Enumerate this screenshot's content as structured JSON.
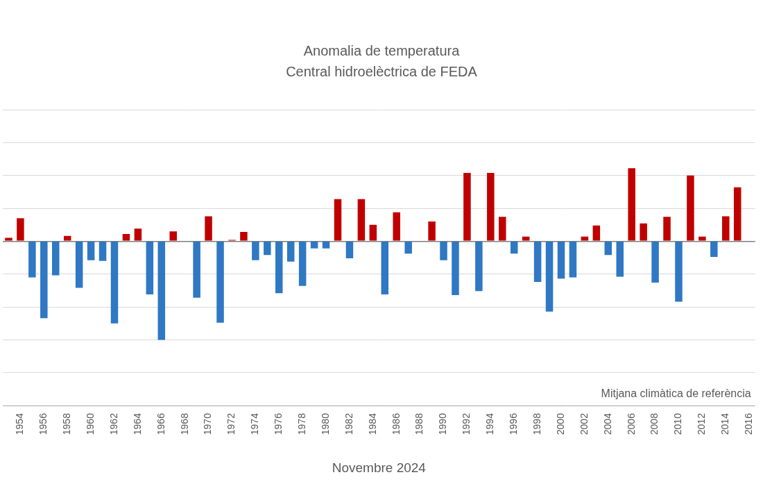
{
  "chart_data": {
    "type": "bar",
    "title": "Anomalia de temperatura",
    "subtitle": "Central hidroelèctrica de FEDA",
    "x_label": "Novembre 2024",
    "annotation": "Mitjana climàtica de referència",
    "categories": [
      null,
      "1954",
      null,
      "1956",
      null,
      "1958",
      null,
      "1960",
      null,
      "1962",
      null,
      "1964",
      null,
      "1966",
      null,
      "1968",
      null,
      "1970",
      null,
      "1972",
      null,
      "1974",
      null,
      "1976",
      null,
      "1978",
      null,
      "1980",
      null,
      "1982",
      null,
      "1984",
      null,
      "1986",
      null,
      "1988",
      null,
      "1990",
      null,
      "1992",
      null,
      "1994",
      null,
      "1996",
      null,
      "1998",
      null,
      "2000",
      null,
      "2002",
      null,
      "2004",
      null,
      "2006",
      null,
      "2008",
      null,
      "2010",
      null,
      "2012",
      null,
      "2014",
      null,
      "2016"
    ],
    "values": [
      0.05,
      0.35,
      -0.55,
      -1.17,
      -0.52,
      0.08,
      -0.71,
      -0.29,
      -0.3,
      -1.25,
      0.11,
      0.19,
      -0.81,
      -1.5,
      0.15,
      0,
      -0.86,
      0.38,
      -1.24,
      0.02,
      0.14,
      -0.29,
      -0.21,
      -0.79,
      -0.31,
      -0.68,
      -0.11,
      -0.11,
      0.64,
      -0.26,
      0.64,
      0.25,
      -0.81,
      0.44,
      -0.19,
      0,
      0.3,
      -0.29,
      -0.82,
      1.04,
      -0.76,
      1.04,
      0.37,
      -0.19,
      0.07,
      -0.62,
      -1.07,
      -0.57,
      -0.55,
      0.07,
      0.24,
      -0.21,
      -0.54,
      1.11,
      0.27,
      -0.63,
      0.37,
      -0.92,
      1.0,
      0.07,
      -0.24,
      0.38,
      0.82,
      null
    ],
    "colors": [
      "#c00000",
      "#c00000",
      "#2f78c4",
      "#2f78c4",
      "#2f78c4",
      "#c00000",
      "#2f78c4",
      "#2f78c4",
      "#2f78c4",
      "#2f78c4",
      "#c00000",
      "#c00000",
      "#2f78c4",
      "#2f78c4",
      "#c00000",
      "#2f78c4",
      "#2f78c4",
      "#c00000",
      "#2f78c4",
      "#c00000",
      "#c00000",
      "#2f78c4",
      "#2f78c4",
      "#2f78c4",
      "#2f78c4",
      "#2f78c4",
      "#2f78c4",
      "#2f78c4",
      "#c00000",
      "#2f78c4",
      "#c00000",
      "#c00000",
      "#2f78c4",
      "#c00000",
      "#2f78c4",
      "#2f78c4",
      "#c00000",
      "#2f78c4",
      "#2f78c4",
      "#c00000",
      "#2f78c4",
      "#c00000",
      "#c00000",
      "#2f78c4",
      "#c00000",
      "#2f78c4",
      "#2f78c4",
      "#2f78c4",
      "#2f78c4",
      "#c00000",
      "#c00000",
      "#2f78c4",
      "#2f78c4",
      "#c00000",
      "#c00000",
      "#2f78c4",
      "#c00000",
      "#2f78c4",
      "#c00000",
      "#c00000",
      "#2f78c4",
      "#c00000",
      "#c00000",
      "#c00000"
    ],
    "ylim": [
      -2.5,
      2
    ],
    "yticks": [
      -2.5,
      -2,
      -1.5,
      -1,
      -0.5,
      0,
      0.5,
      1,
      1.5,
      2
    ],
    "grid": true,
    "tick_labels": "x"
  }
}
